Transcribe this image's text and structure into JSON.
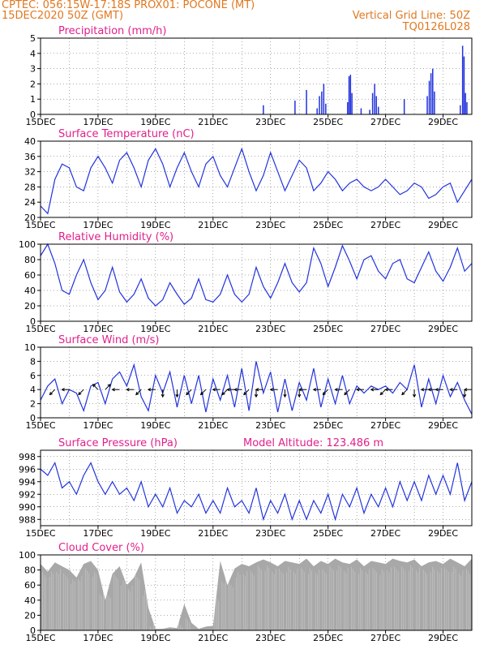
{
  "header": {
    "line1_left": "CPTEC:  056:15W-17:18S  PROX01: POCONE (MT)",
    "line2_left": "15DEC2020 50Z (GMT)",
    "line2_right": "Vertical Grid Line: 50Z",
    "line3_right": "TQ0126L028",
    "altitude_label": "Model Altitude: 123.486 m"
  },
  "colors": {
    "header": "#e07820",
    "title": "#e0208c",
    "line": "#2233dd",
    "bar": "#2233dd",
    "cloud": "#a8a8a8",
    "arrow": "#000000"
  },
  "x_ticks": [
    "15DEC",
    "17DEC",
    "19DEC",
    "21DEC",
    "23DEC",
    "25DEC",
    "27DEC",
    "29DEC"
  ],
  "chart_data": [
    {
      "type": "bar",
      "title": "Precipitation (mm/h)",
      "ylim": [
        0,
        5
      ],
      "yticks": [
        0,
        1,
        2,
        3,
        4,
        5
      ],
      "xlim_days": [
        15,
        30
      ],
      "bars": [
        {
          "day": 22.75,
          "value": 0.6
        },
        {
          "day": 23.85,
          "value": 0.9
        },
        {
          "day": 24.25,
          "value": 1.6
        },
        {
          "day": 24.62,
          "value": 0.4
        },
        {
          "day": 24.7,
          "value": 1.2
        },
        {
          "day": 24.78,
          "value": 1.5
        },
        {
          "day": 24.85,
          "value": 2.0
        },
        {
          "day": 24.92,
          "value": 0.7
        },
        {
          "day": 25.68,
          "value": 0.8
        },
        {
          "day": 25.73,
          "value": 2.5
        },
        {
          "day": 25.78,
          "value": 2.6
        },
        {
          "day": 25.83,
          "value": 1.4
        },
        {
          "day": 26.15,
          "value": 0.4
        },
        {
          "day": 26.45,
          "value": 0.3
        },
        {
          "day": 26.55,
          "value": 1.4
        },
        {
          "day": 26.62,
          "value": 2.0
        },
        {
          "day": 26.68,
          "value": 1.2
        },
        {
          "day": 26.75,
          "value": 0.5
        },
        {
          "day": 27.65,
          "value": 1.0
        },
        {
          "day": 28.45,
          "value": 1.2
        },
        {
          "day": 28.52,
          "value": 2.2
        },
        {
          "day": 28.58,
          "value": 2.7
        },
        {
          "day": 28.64,
          "value": 3.0
        },
        {
          "day": 28.7,
          "value": 1.5
        },
        {
          "day": 29.6,
          "value": 0.6
        },
        {
          "day": 29.68,
          "value": 4.5
        },
        {
          "day": 29.73,
          "value": 3.8
        },
        {
          "day": 29.78,
          "value": 1.4
        },
        {
          "day": 29.83,
          "value": 0.8
        }
      ]
    },
    {
      "type": "line",
      "title": "Surface Temperature (nC)",
      "ylim": [
        20,
        40
      ],
      "yticks": [
        20,
        24,
        28,
        32,
        36,
        40
      ],
      "xlim_days": [
        15,
        30
      ],
      "x": [
        15.0,
        15.25,
        15.5,
        15.75,
        16.0,
        16.25,
        16.5,
        16.75,
        17.0,
        17.25,
        17.5,
        17.75,
        18.0,
        18.25,
        18.5,
        18.75,
        19.0,
        19.25,
        19.5,
        19.75,
        20.0,
        20.25,
        20.5,
        20.75,
        21.0,
        21.25,
        21.5,
        21.75,
        22.0,
        22.25,
        22.5,
        22.75,
        23.0,
        23.25,
        23.5,
        23.75,
        24.0,
        24.25,
        24.5,
        24.75,
        25.0,
        25.25,
        25.5,
        25.75,
        26.0,
        26.25,
        26.5,
        26.75,
        27.0,
        27.25,
        27.5,
        27.75,
        28.0,
        28.25,
        28.5,
        28.75,
        29.0,
        29.25,
        29.5,
        29.75,
        30.0
      ],
      "y": [
        23,
        21,
        30,
        34,
        33,
        28,
        27,
        33,
        36,
        33,
        29,
        35,
        37,
        33,
        28,
        35,
        38,
        34,
        28,
        33,
        37,
        32,
        28,
        34,
        36,
        31,
        28,
        33,
        38,
        32,
        27,
        31,
        37,
        32,
        27,
        31,
        35,
        33,
        27,
        29,
        32,
        30,
        27,
        29,
        30,
        28,
        27,
        28,
        30,
        28,
        26,
        27,
        29,
        28,
        25,
        26,
        28,
        29,
        24,
        27,
        30
      ]
    },
    {
      "type": "line",
      "title": "Relative Humidity (%)",
      "ylim": [
        0,
        100
      ],
      "yticks": [
        0,
        20,
        40,
        60,
        80,
        100
      ],
      "xlim_days": [
        15,
        30
      ],
      "x": [
        15.0,
        15.25,
        15.5,
        15.75,
        16.0,
        16.25,
        16.5,
        16.75,
        17.0,
        17.25,
        17.5,
        17.75,
        18.0,
        18.25,
        18.5,
        18.75,
        19.0,
        19.25,
        19.5,
        19.75,
        20.0,
        20.25,
        20.5,
        20.75,
        21.0,
        21.25,
        21.5,
        21.75,
        22.0,
        22.25,
        22.5,
        22.75,
        23.0,
        23.25,
        23.5,
        23.75,
        24.0,
        24.25,
        24.5,
        24.75,
        25.0,
        25.25,
        25.5,
        25.75,
        26.0,
        26.25,
        26.5,
        26.75,
        27.0,
        27.25,
        27.5,
        27.75,
        28.0,
        28.25,
        28.5,
        28.75,
        29.0,
        29.25,
        29.5,
        29.75,
        30.0
      ],
      "y": [
        85,
        100,
        75,
        40,
        35,
        60,
        80,
        50,
        28,
        40,
        70,
        38,
        25,
        35,
        55,
        30,
        20,
        28,
        50,
        35,
        22,
        30,
        55,
        28,
        25,
        35,
        60,
        35,
        25,
        35,
        70,
        45,
        30,
        50,
        75,
        50,
        38,
        50,
        95,
        75,
        45,
        70,
        98,
        78,
        55,
        80,
        85,
        65,
        55,
        75,
        80,
        55,
        50,
        70,
        90,
        65,
        52,
        70,
        95,
        65,
        75
      ]
    },
    {
      "type": "line",
      "title": "Surface Wind (m/s)",
      "ylim": [
        0,
        10
      ],
      "yticks": [
        0,
        2,
        4,
        6,
        8,
        10
      ],
      "xlim_days": [
        15,
        30
      ],
      "x": [
        15.0,
        15.25,
        15.5,
        15.75,
        16.0,
        16.25,
        16.5,
        16.75,
        17.0,
        17.25,
        17.5,
        17.75,
        18.0,
        18.25,
        18.5,
        18.75,
        19.0,
        19.25,
        19.5,
        19.75,
        20.0,
        20.25,
        20.5,
        20.75,
        21.0,
        21.25,
        21.5,
        21.75,
        22.0,
        22.25,
        22.5,
        22.75,
        23.0,
        23.25,
        23.5,
        23.75,
        24.0,
        24.25,
        24.5,
        24.75,
        25.0,
        25.25,
        25.5,
        25.75,
        26.0,
        26.25,
        26.5,
        26.75,
        27.0,
        27.25,
        27.5,
        27.75,
        28.0,
        28.25,
        28.5,
        28.75,
        29.0,
        29.25,
        29.5,
        29.75,
        30.0
      ],
      "y": [
        2.5,
        4.5,
        5.5,
        2.0,
        4.0,
        3.5,
        1.0,
        4.5,
        5.0,
        2.0,
        5.5,
        6.5,
        4.5,
        7.5,
        3.0,
        1.0,
        6.0,
        3.5,
        6.5,
        1.5,
        6.0,
        2.0,
        6.0,
        0.8,
        5.5,
        2.5,
        6.0,
        1.5,
        7.0,
        1.0,
        8.0,
        3.5,
        6.5,
        0.8,
        5.5,
        1.0,
        5.0,
        2.5,
        7.0,
        1.5,
        5.5,
        2.0,
        6.0,
        2.0,
        4.5,
        3.5,
        4.5,
        4.0,
        4.5,
        3.5,
        5.0,
        4.0,
        7.5,
        1.5,
        5.5,
        2.0,
        6.0,
        3.0,
        5.0,
        2.5,
        0.5
      ],
      "arrows": [
        {
          "day": 15.5,
          "dir": "sw"
        },
        {
          "day": 16.0,
          "dir": "w"
        },
        {
          "day": 16.5,
          "dir": "sw"
        },
        {
          "day": 17.0,
          "dir": "nw"
        },
        {
          "day": 17.25,
          "dir": "ne"
        },
        {
          "day": 17.75,
          "dir": "w"
        },
        {
          "day": 18.25,
          "dir": "w"
        },
        {
          "day": 18.5,
          "dir": "sw"
        },
        {
          "day": 19.0,
          "dir": "w"
        },
        {
          "day": 19.25,
          "dir": "s"
        },
        {
          "day": 19.75,
          "dir": "s"
        },
        {
          "day": 20.25,
          "dir": "sw"
        },
        {
          "day": 20.75,
          "dir": "sw"
        },
        {
          "day": 21.25,
          "dir": "w"
        },
        {
          "day": 21.5,
          "dir": "sw"
        },
        {
          "day": 21.75,
          "dir": "w"
        },
        {
          "day": 22.0,
          "dir": "w"
        },
        {
          "day": 22.25,
          "dir": "sw"
        },
        {
          "day": 22.5,
          "dir": "s"
        },
        {
          "day": 22.75,
          "dir": "w"
        },
        {
          "day": 23.25,
          "dir": "w"
        },
        {
          "day": 23.5,
          "dir": "s"
        },
        {
          "day": 24.0,
          "dir": "s"
        },
        {
          "day": 24.25,
          "dir": "w"
        },
        {
          "day": 24.75,
          "dir": "w"
        },
        {
          "day": 25.0,
          "dir": "sw"
        },
        {
          "day": 25.5,
          "dir": "w"
        },
        {
          "day": 25.75,
          "dir": "sw"
        },
        {
          "day": 26.25,
          "dir": "w"
        },
        {
          "day": 26.75,
          "dir": "w"
        },
        {
          "day": 27.0,
          "dir": "sw"
        },
        {
          "day": 27.25,
          "dir": "w"
        },
        {
          "day": 27.75,
          "dir": "sw"
        },
        {
          "day": 28.0,
          "dir": "s"
        },
        {
          "day": 28.5,
          "dir": "w"
        },
        {
          "day": 28.75,
          "dir": "w"
        },
        {
          "day": 29.0,
          "dir": "w"
        },
        {
          "day": 29.5,
          "dir": "w"
        },
        {
          "day": 29.75,
          "dir": "s"
        },
        {
          "day": 30.0,
          "dir": "w"
        }
      ]
    },
    {
      "type": "line",
      "title": "Surface Pressure (hPa)",
      "ylim": [
        987,
        999
      ],
      "yticks": [
        988,
        990,
        992,
        994,
        996,
        998
      ],
      "xlim_days": [
        15,
        30
      ],
      "x": [
        15.0,
        15.25,
        15.5,
        15.75,
        16.0,
        16.25,
        16.5,
        16.75,
        17.0,
        17.25,
        17.5,
        17.75,
        18.0,
        18.25,
        18.5,
        18.75,
        19.0,
        19.25,
        19.5,
        19.75,
        20.0,
        20.25,
        20.5,
        20.75,
        21.0,
        21.25,
        21.5,
        21.75,
        22.0,
        22.25,
        22.5,
        22.75,
        23.0,
        23.25,
        23.5,
        23.75,
        24.0,
        24.25,
        24.5,
        24.75,
        25.0,
        25.25,
        25.5,
        25.75,
        26.0,
        26.25,
        26.5,
        26.75,
        27.0,
        27.25,
        27.5,
        27.75,
        28.0,
        28.25,
        28.5,
        28.75,
        29.0,
        29.25,
        29.5,
        29.75,
        30.0
      ],
      "y": [
        996,
        995,
        997,
        993,
        994,
        992,
        995,
        997,
        994,
        992,
        994,
        992,
        993,
        991,
        994,
        990,
        992,
        990,
        993,
        989,
        991,
        990,
        992,
        989,
        991,
        989,
        993,
        990,
        991,
        989,
        993,
        988,
        991,
        989,
        992,
        988,
        991,
        988,
        991,
        989,
        992,
        988,
        992,
        990,
        993,
        989,
        992,
        990,
        993,
        990,
        994,
        991,
        994,
        991,
        995,
        992,
        995,
        992,
        997,
        991,
        994
      ]
    },
    {
      "type": "area",
      "title": "Cloud Cover (%)",
      "ylim": [
        0,
        100
      ],
      "yticks": [
        0,
        20,
        40,
        60,
        80,
        100
      ],
      "xlim_days": [
        15,
        30
      ],
      "x": [
        15.0,
        15.25,
        15.5,
        15.75,
        16.0,
        16.25,
        16.5,
        16.75,
        17.0,
        17.25,
        17.5,
        17.75,
        18.0,
        18.25,
        18.5,
        18.75,
        19.0,
        19.25,
        19.5,
        19.75,
        20.0,
        20.25,
        20.5,
        20.75,
        21.0,
        21.25,
        21.5,
        21.75,
        22.0,
        22.25,
        22.5,
        22.75,
        23.0,
        23.25,
        23.5,
        23.75,
        24.0,
        24.25,
        24.5,
        24.75,
        25.0,
        25.25,
        25.5,
        25.75,
        26.0,
        26.25,
        26.5,
        26.75,
        27.0,
        27.25,
        27.5,
        27.75,
        28.0,
        28.25,
        28.5,
        28.75,
        29.0,
        29.25,
        29.5,
        29.75,
        30.0
      ],
      "y": [
        88,
        78,
        90,
        85,
        80,
        70,
        88,
        92,
        80,
        40,
        75,
        85,
        60,
        70,
        90,
        30,
        2,
        2,
        4,
        3,
        35,
        10,
        2,
        5,
        6,
        92,
        60,
        82,
        88,
        85,
        90,
        94,
        90,
        85,
        92,
        90,
        88,
        95,
        85,
        92,
        88,
        95,
        90,
        88,
        94,
        85,
        92,
        90,
        88,
        95,
        92,
        90,
        94,
        85,
        90,
        92,
        88,
        95,
        90,
        85,
        95
      ]
    }
  ]
}
